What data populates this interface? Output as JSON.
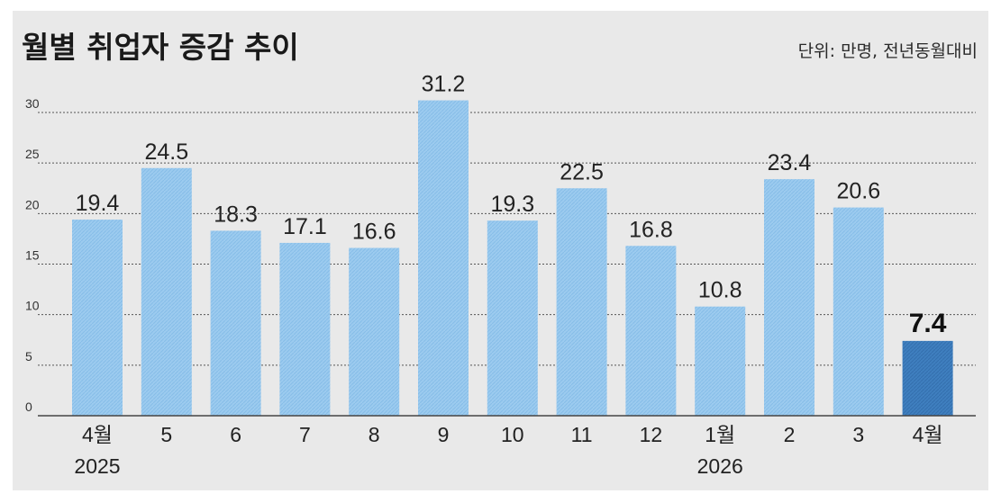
{
  "chart_data": {
    "type": "bar",
    "title": "월별 취업자 증감 추이",
    "unit_note": "단위: 만명, 전년동월대비",
    "categories": [
      "4월",
      "5",
      "6",
      "7",
      "8",
      "9",
      "10",
      "11",
      "12",
      "1월",
      "2",
      "3",
      "4월"
    ],
    "year_labels": [
      "2025",
      "",
      "",
      "",
      "",
      "",
      "",
      "",
      "",
      "2026",
      "",
      "",
      ""
    ],
    "values": [
      19.4,
      24.5,
      18.3,
      17.1,
      16.6,
      31.2,
      19.3,
      22.5,
      16.8,
      10.8,
      23.4,
      20.6,
      7.4
    ],
    "value_labels": [
      "19.4",
      "24.5",
      "18.3",
      "17.1",
      "16.6",
      "31.2",
      "19.3",
      "22.5",
      "16.8",
      "10.8",
      "23.4",
      "20.6",
      "7.4"
    ],
    "highlight_index": 12,
    "ylim": [
      0,
      30
    ],
    "yticks": [
      0,
      5,
      10,
      15,
      20,
      25,
      30
    ],
    "grid": true,
    "legend": "none",
    "colors": {
      "bar": "#9ccbef",
      "bar_hatch": "#7fb6e4",
      "bar_highlight": "#3f7fbf",
      "background": "#e9e9e9"
    }
  }
}
